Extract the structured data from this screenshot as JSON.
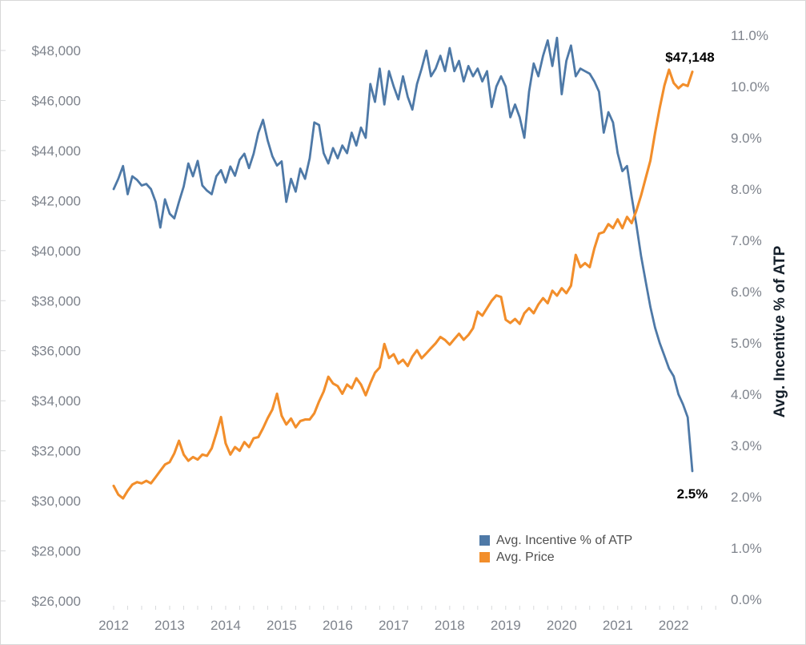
{
  "frame": {
    "background_color": "#ffffff",
    "border_color": "#d8d8d8"
  },
  "right_axis_title": "Avg. Incentive % of ATP",
  "annotations": {
    "price_end_label": "$47,148",
    "incentive_end_label": "2.5%"
  },
  "legend": {
    "items": [
      {
        "label": "Avg. Incentive % of ATP",
        "color": "#4e79a7"
      },
      {
        "label": "Avg. Price",
        "color": "#f28e2b"
      }
    ]
  },
  "colors": {
    "incentive_line": "#4e79a7",
    "price_line": "#f28e2b",
    "tick_label_gray": "#7e838c",
    "tick_mark_gray": "#d8dadc",
    "annotation_black": "#000000",
    "axis_title_dark": "#15202b"
  },
  "chart_data": {
    "type": "line",
    "title": "",
    "x_unit": "month",
    "x_start": "2012-01",
    "x_end": "2022-05",
    "x_tick_labels": [
      "2012",
      "2013",
      "2014",
      "2015",
      "2016",
      "2017",
      "2018",
      "2019",
      "2020",
      "2021",
      "2022"
    ],
    "left_axis": {
      "label": "",
      "unit": "USD",
      "tick_format": "$#,##0",
      "min": 26000,
      "max": 48000,
      "tick_step": 2000
    },
    "right_axis": {
      "label": "Avg. Incentive % of ATP",
      "unit": "percent",
      "tick_format": "0.0%",
      "min": 0.0,
      "max": 11.0,
      "tick_step": 1.0
    },
    "grid": false,
    "legend_position": "bottom-right-inside",
    "series": [
      {
        "name": "Avg. Incentive % of ATP",
        "axis": "right",
        "color": "#4e79a7",
        "end_annotation": "2.5%",
        "values": [
          8.0,
          8.2,
          8.45,
          7.9,
          8.25,
          8.18,
          8.07,
          8.1,
          8.0,
          7.75,
          7.25,
          7.8,
          7.52,
          7.43,
          7.75,
          8.05,
          8.5,
          8.25,
          8.55,
          8.07,
          7.97,
          7.9,
          8.25,
          8.37,
          8.13,
          8.44,
          8.26,
          8.57,
          8.69,
          8.41,
          8.69,
          9.1,
          9.35,
          8.95,
          8.64,
          8.46,
          8.54,
          7.75,
          8.2,
          7.95,
          8.4,
          8.2,
          8.6,
          9.3,
          9.25,
          8.7,
          8.5,
          8.8,
          8.6,
          8.85,
          8.7,
          9.1,
          8.85,
          9.2,
          9.0,
          10.05,
          9.7,
          10.35,
          9.65,
          10.3,
          10.0,
          9.75,
          10.2,
          9.8,
          9.55,
          10.05,
          10.35,
          10.7,
          10.2,
          10.35,
          10.6,
          10.3,
          10.75,
          10.3,
          10.5,
          10.1,
          10.4,
          10.2,
          10.35,
          10.1,
          10.3,
          9.6,
          10.0,
          10.2,
          10.0,
          9.4,
          9.65,
          9.4,
          9.0,
          9.9,
          10.45,
          10.2,
          10.6,
          10.9,
          10.4,
          10.95,
          9.85,
          10.5,
          10.8,
          10.2,
          10.35,
          10.3,
          10.25,
          10.1,
          9.9,
          9.1,
          9.5,
          9.3,
          8.7,
          8.35,
          8.45,
          7.85,
          7.3,
          6.7,
          6.2,
          5.7,
          5.3,
          5.0,
          4.75,
          4.5,
          4.35,
          4.0,
          3.8,
          3.55,
          2.5
        ]
      },
      {
        "name": "Avg. Price",
        "axis": "left",
        "color": "#f28e2b",
        "end_annotation": "$47,148",
        "values": [
          30600,
          30250,
          30100,
          30400,
          30650,
          30750,
          30700,
          30800,
          30700,
          30950,
          31200,
          31450,
          31550,
          31900,
          32400,
          31850,
          31600,
          31750,
          31650,
          31850,
          31800,
          32100,
          32700,
          33350,
          32300,
          31850,
          32150,
          32000,
          32350,
          32150,
          32500,
          32550,
          32900,
          33300,
          33650,
          34280,
          33400,
          33050,
          33290,
          32940,
          33190,
          33250,
          33250,
          33500,
          33970,
          34370,
          34960,
          34690,
          34590,
          34280,
          34650,
          34500,
          34900,
          34650,
          34220,
          34700,
          35120,
          35330,
          36270,
          35710,
          35860,
          35490,
          35640,
          35390,
          35770,
          36020,
          35700,
          35900,
          36100,
          36300,
          36550,
          36430,
          36240,
          36470,
          36680,
          36435,
          36630,
          36900,
          37560,
          37400,
          37700,
          38000,
          38210,
          38150,
          37240,
          37110,
          37270,
          37075,
          37500,
          37700,
          37500,
          37850,
          38100,
          37900,
          38400,
          38200,
          38500,
          38300,
          38600,
          39830,
          39340,
          39500,
          39340,
          40090,
          40680,
          40740,
          41060,
          40900,
          41250,
          40900,
          41350,
          41100,
          41600,
          42200,
          42900,
          43600,
          44700,
          45700,
          46600,
          47230,
          46700,
          46490,
          46650,
          46580,
          47148
        ]
      }
    ]
  }
}
